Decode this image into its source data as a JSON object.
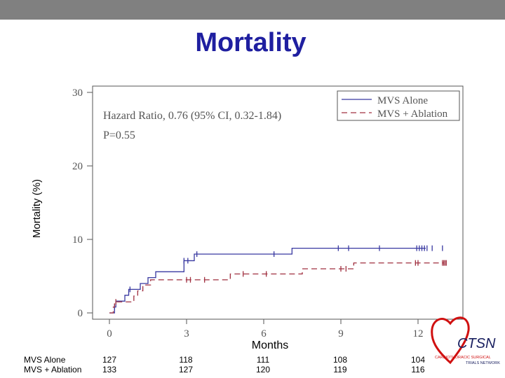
{
  "header": {
    "title": "Mortality"
  },
  "colors": {
    "topbar": "#808080",
    "title": "#1f1fa0",
    "mvs_alone": "#3838a0",
    "mvs_ablation": "#a03040",
    "logo_red": "#d01010",
    "logo_navy": "#1a2060"
  },
  "chart_data": {
    "type": "line",
    "title": "Mortality",
    "xlabel": "Months",
    "ylabel": "Mortality (%)",
    "xlim": [
      -1.2,
      13
    ],
    "ylim": [
      0,
      30
    ],
    "x_ticks": [
      0,
      3,
      6,
      9,
      12
    ],
    "x_tick_labels": [
      "0",
      "3",
      "6",
      "9",
      "12"
    ],
    "y_ticks": [
      0,
      10,
      20,
      30
    ],
    "y_tick_labels": [
      "0",
      "10",
      "20",
      "30"
    ],
    "grid": false,
    "legend_position": "top-right",
    "annotation_lines": [
      "Hazard Ratio, 0.76 (95% CI, 0.32-1.84)",
      "P=0.55"
    ],
    "series": [
      {
        "name": "MVS Alone",
        "style": "solid",
        "color": "#3838a0",
        "steps": [
          [
            0,
            0
          ],
          [
            0.2,
            0.8
          ],
          [
            0.25,
            1.6
          ],
          [
            0.6,
            2.4
          ],
          [
            0.75,
            3.2
          ],
          [
            1.2,
            4.0
          ],
          [
            1.5,
            4.8
          ],
          [
            1.8,
            5.6
          ],
          [
            2.9,
            7.1
          ],
          [
            3.3,
            8.0
          ],
          [
            7.1,
            8.8
          ],
          [
            12.3,
            8.8
          ]
        ],
        "censor": [
          0.2,
          0.8,
          2.9,
          3.05,
          3.4,
          6.4,
          8.9,
          9.3,
          10.5,
          11.95,
          12.05,
          12.15,
          12.25,
          12.35,
          12.55,
          12.95
        ]
      },
      {
        "name": "MVS + Ablation",
        "style": "dashed",
        "color": "#a03040",
        "steps": [
          [
            0,
            0
          ],
          [
            0.15,
            0.8
          ],
          [
            0.2,
            1.5
          ],
          [
            0.95,
            2.3
          ],
          [
            1.1,
            3.0
          ],
          [
            1.3,
            3.8
          ],
          [
            1.6,
            4.5
          ],
          [
            4.7,
            5.3
          ],
          [
            7.5,
            6.0
          ],
          [
            9.5,
            6.8
          ],
          [
            13.0,
            6.8
          ]
        ],
        "censor": [
          0.25,
          3.0,
          3.15,
          3.7,
          5.2,
          6.1,
          9.0,
          9.2,
          11.9,
          12.0,
          12.95,
          13.0,
          13.05,
          13.1
        ]
      }
    ]
  },
  "risk_table": {
    "rows": [
      {
        "label": "MVS Alone",
        "values": [
          "127",
          "118",
          "111",
          "108",
          "104"
        ]
      },
      {
        "label": "MVS + Ablation",
        "values": [
          "133",
          "127",
          "120",
          "119",
          "116"
        ]
      }
    ]
  },
  "logo": {
    "text": "CTSN",
    "subtitle_lines": [
      "CARDIOTHORACIC SURGICAL",
      "TRIALS NETWORK"
    ]
  }
}
